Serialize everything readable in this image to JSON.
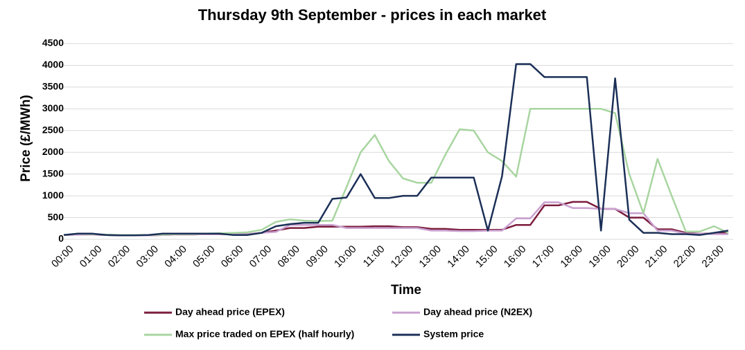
{
  "chart_data": {
    "type": "line",
    "title": "Thursday 9th September - prices in each market",
    "x_label": "Time",
    "y_label": "Price (£/MWh)",
    "categories": [
      "00:00",
      null,
      "01:00",
      null,
      "02:00",
      null,
      "03:00",
      null,
      "04:00",
      null,
      "05:00",
      null,
      "06:00",
      null,
      "07:00",
      null,
      "08:00",
      null,
      "09:00",
      null,
      "10:00",
      null,
      "11:00",
      null,
      "12:00",
      null,
      "13:00",
      null,
      "14:00",
      null,
      "15:00",
      null,
      "16:00",
      null,
      "17:00",
      null,
      "18:00",
      null,
      "19:00",
      null,
      "20:00",
      null,
      "21:00",
      null,
      "22:00",
      null,
      "23:00",
      null
    ],
    "ylim": [
      0,
      4500
    ],
    "yticks": [
      0,
      500,
      1000,
      1500,
      2000,
      2500,
      3000,
      3500,
      4000,
      4500
    ],
    "grid": true,
    "legend": "bottom",
    "series": [
      {
        "name": "Day ahead price (EPEX)",
        "color": "#7b1c3c",
        "values": [
          100,
          110,
          110,
          100,
          90,
          90,
          90,
          100,
          110,
          110,
          120,
          120,
          120,
          120,
          150,
          200,
          260,
          260,
          290,
          290,
          290,
          290,
          300,
          300,
          280,
          280,
          240,
          240,
          220,
          220,
          220,
          220,
          330,
          330,
          780,
          780,
          860,
          860,
          700,
          700,
          500,
          500,
          230,
          230,
          150,
          130,
          130,
          150
        ]
      },
      {
        "name": "Day ahead price (N2EX)",
        "color": "#c9a0d0",
        "values": [
          100,
          110,
          110,
          100,
          90,
          90,
          90,
          100,
          110,
          110,
          120,
          120,
          120,
          120,
          150,
          170,
          330,
          330,
          330,
          330,
          260,
          260,
          260,
          260,
          260,
          260,
          200,
          200,
          190,
          190,
          200,
          200,
          480,
          480,
          850,
          850,
          720,
          720,
          700,
          700,
          600,
          600,
          200,
          200,
          130,
          130,
          120,
          120
        ]
      },
      {
        "name": "Max price traded on EPEX (half hourly)",
        "color": "#a8d5a0",
        "values": [
          100,
          130,
          120,
          110,
          100,
          100,
          100,
          110,
          120,
          120,
          130,
          140,
          150,
          160,
          220,
          400,
          460,
          430,
          420,
          430,
          1200,
          2000,
          2400,
          1800,
          1400,
          1300,
          1300,
          1950,
          2530,
          2500,
          2000,
          1800,
          1440,
          3000,
          3000,
          3000,
          3000,
          3000,
          3000,
          2900,
          1500,
          600,
          1850,
          1000,
          180,
          180,
          300,
          150
        ]
      },
      {
        "name": "System price",
        "color": "#1b2f57",
        "values": [
          100,
          130,
          130,
          100,
          90,
          90,
          100,
          130,
          130,
          130,
          130,
          130,
          100,
          100,
          150,
          300,
          350,
          380,
          380,
          930,
          960,
          1500,
          950,
          950,
          1000,
          1000,
          1420,
          1420,
          1420,
          1420,
          200,
          1450,
          4030,
          4030,
          3730,
          3730,
          3730,
          3730,
          200,
          3700,
          450,
          150,
          150,
          120,
          120,
          100,
          150,
          200
        ]
      }
    ]
  }
}
